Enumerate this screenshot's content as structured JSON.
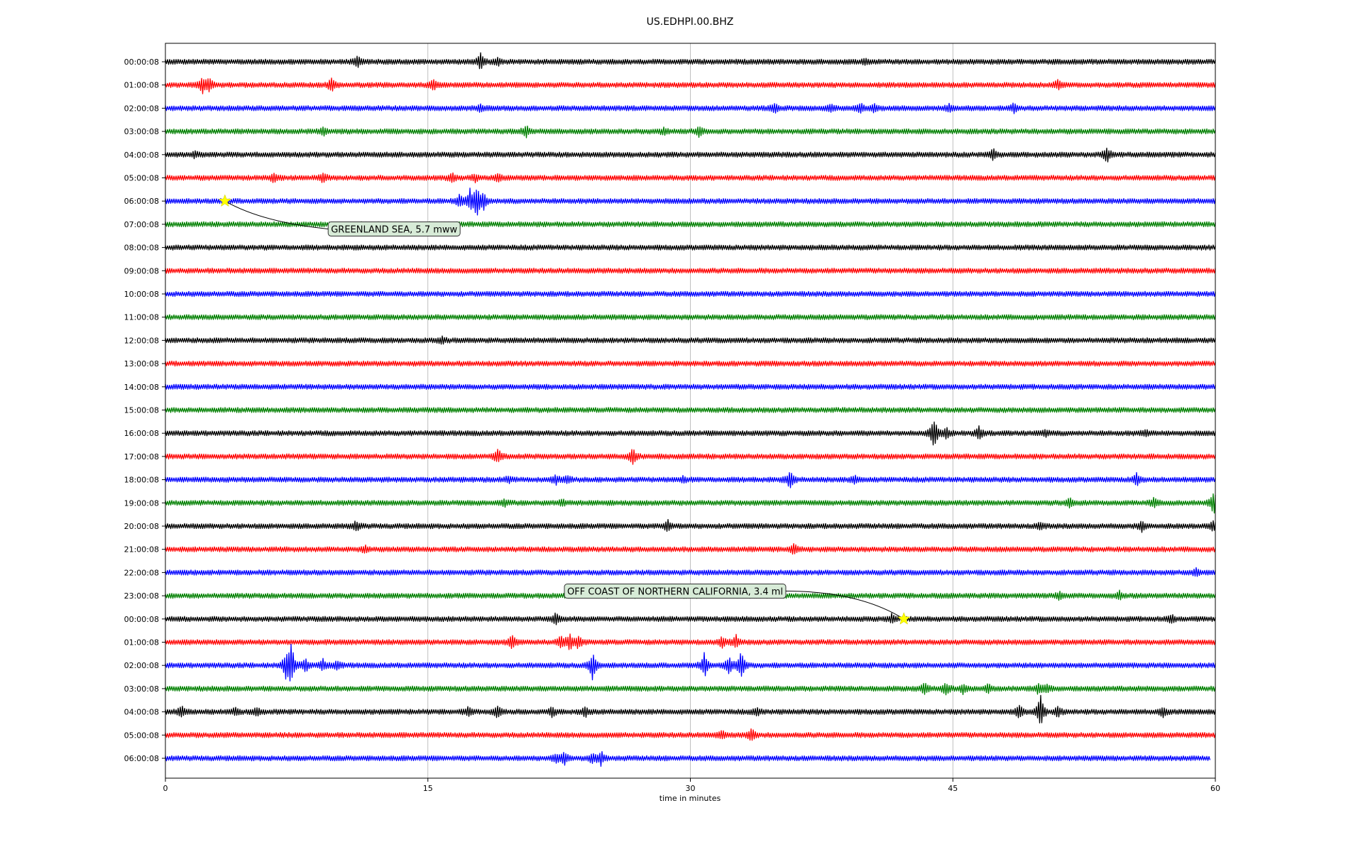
{
  "chart_data": {
    "type": "line",
    "title": "US.EDHPI.00.BHZ",
    "xlabel": "time in minutes",
    "ylabel": "",
    "xlim": [
      0,
      60
    ],
    "xticks": [
      "0",
      "15",
      "30",
      "45",
      "60"
    ],
    "xtick_values": [
      0,
      15,
      30,
      45,
      60
    ],
    "grid": "vertical",
    "colors": [
      "#000000",
      "#ff0000",
      "#0000ff",
      "#008000"
    ],
    "rows": [
      {
        "label": "00:00:08",
        "color": "#000000",
        "end": 60,
        "bursts": [
          [
            11,
            8
          ],
          [
            18,
            11
          ],
          [
            19,
            5
          ],
          [
            40,
            4
          ]
        ]
      },
      {
        "label": "01:00:08",
        "color": "#ff0000",
        "end": 60,
        "bursts": [
          [
            2.1,
            12
          ],
          [
            2.5,
            9
          ],
          [
            9.5,
            11
          ],
          [
            15.3,
            8
          ],
          [
            51,
            6
          ]
        ]
      },
      {
        "label": "02:00:08",
        "color": "#0000ff",
        "end": 60,
        "bursts": [
          [
            18,
            4
          ],
          [
            34.8,
            6
          ],
          [
            38,
            5
          ],
          [
            39.7,
            8
          ],
          [
            40.5,
            6
          ],
          [
            44.8,
            5
          ],
          [
            48.5,
            6
          ]
        ]
      },
      {
        "label": "03:00:08",
        "color": "#008000",
        "end": 60,
        "bursts": [
          [
            9,
            5
          ],
          [
            20.6,
            8
          ],
          [
            28.5,
            4
          ],
          [
            30.5,
            7
          ]
        ]
      },
      {
        "label": "04:00:08",
        "color": "#000000",
        "end": 60,
        "bursts": [
          [
            1.7,
            4
          ],
          [
            47.3,
            8
          ],
          [
            53.8,
            11
          ]
        ]
      },
      {
        "label": "05:00:08",
        "color": "#ff0000",
        "end": 60,
        "bursts": [
          [
            6.2,
            6
          ],
          [
            9,
            7
          ],
          [
            16.4,
            6
          ],
          [
            17.7,
            5
          ],
          [
            19,
            5
          ]
        ]
      },
      {
        "label": "06:00:08",
        "color": "#0000ff",
        "end": 60,
        "bursts": [
          [
            16.8,
            9
          ],
          [
            17.4,
            14
          ],
          [
            17.8,
            22
          ],
          [
            18.2,
            11
          ]
        ]
      },
      {
        "label": "07:00:08",
        "color": "#008000",
        "end": 60,
        "bursts": []
      },
      {
        "label": "08:00:08",
        "color": "#000000",
        "end": 60,
        "bursts": []
      },
      {
        "label": "09:00:08",
        "color": "#ff0000",
        "end": 60,
        "bursts": []
      },
      {
        "label": "10:00:08",
        "color": "#0000ff",
        "end": 60,
        "bursts": []
      },
      {
        "label": "11:00:08",
        "color": "#008000",
        "end": 60,
        "bursts": []
      },
      {
        "label": "12:00:08",
        "color": "#000000",
        "end": 60,
        "bursts": [
          [
            15.8,
            5
          ]
        ]
      },
      {
        "label": "13:00:08",
        "color": "#ff0000",
        "end": 60,
        "bursts": []
      },
      {
        "label": "14:00:08",
        "color": "#0000ff",
        "end": 60,
        "bursts": []
      },
      {
        "label": "15:00:08",
        "color": "#008000",
        "end": 60,
        "bursts": []
      },
      {
        "label": "16:00:08",
        "color": "#000000",
        "end": 60,
        "bursts": [
          [
            43.9,
            26
          ],
          [
            44.6,
            9
          ],
          [
            46.5,
            9
          ],
          [
            50.3,
            5
          ],
          [
            56,
            4
          ]
        ]
      },
      {
        "label": "17:00:08",
        "color": "#ff0000",
        "end": 60,
        "bursts": [
          [
            19,
            10
          ],
          [
            26.7,
            12
          ]
        ]
      },
      {
        "label": "18:00:08",
        "color": "#0000ff",
        "end": 60,
        "bursts": [
          [
            19.6,
            5
          ],
          [
            22.3,
            6
          ],
          [
            23,
            5
          ],
          [
            29.6,
            4
          ],
          [
            35.7,
            14
          ],
          [
            39.4,
            6
          ],
          [
            55.5,
            8
          ]
        ]
      },
      {
        "label": "19:00:08",
        "color": "#008000",
        "end": 60,
        "bursts": [
          [
            19.4,
            4
          ],
          [
            22.7,
            4
          ],
          [
            51.7,
            6
          ],
          [
            56.5,
            7
          ],
          [
            59.9,
            16
          ]
        ]
      },
      {
        "label": "20:00:08",
        "color": "#000000",
        "end": 60,
        "bursts": [
          [
            10.9,
            6
          ],
          [
            28.7,
            8
          ],
          [
            50,
            5
          ],
          [
            55.8,
            6
          ],
          [
            59.9,
            8
          ]
        ]
      },
      {
        "label": "21:00:08",
        "color": "#ff0000",
        "end": 60,
        "bursts": [
          [
            11.4,
            4
          ],
          [
            35.9,
            7
          ]
        ]
      },
      {
        "label": "22:00:08",
        "color": "#0000ff",
        "end": 60,
        "bursts": [
          [
            58.9,
            5
          ]
        ]
      },
      {
        "label": "23:00:08",
        "color": "#008000",
        "end": 60,
        "bursts": [
          [
            51.1,
            5
          ],
          [
            54.5,
            6
          ]
        ]
      },
      {
        "label": "00:00:08",
        "color": "#000000",
        "end": 60,
        "bursts": [
          [
            22.3,
            8
          ],
          [
            41.5,
            5
          ],
          [
            57.5,
            5
          ]
        ]
      },
      {
        "label": "01:00:08",
        "color": "#ff0000",
        "end": 60,
        "bursts": [
          [
            19.8,
            9
          ],
          [
            22.6,
            10
          ],
          [
            23.1,
            11
          ],
          [
            23.6,
            9
          ],
          [
            31.8,
            8
          ],
          [
            32.6,
            9
          ]
        ]
      },
      {
        "label": "02:00:08",
        "color": "#0000ff",
        "end": 60,
        "bursts": [
          [
            6.9,
            20
          ],
          [
            7.2,
            28
          ],
          [
            8,
            10
          ],
          [
            9,
            8
          ],
          [
            9.8,
            6
          ],
          [
            24.4,
            20
          ],
          [
            30.8,
            18
          ],
          [
            32.2,
            14
          ],
          [
            32.9,
            25
          ]
        ]
      },
      {
        "label": "03:00:08",
        "color": "#008000",
        "end": 60,
        "bursts": [
          [
            43.4,
            8
          ],
          [
            44.6,
            9
          ],
          [
            45.6,
            7
          ],
          [
            47,
            6
          ],
          [
            49.9,
            7
          ],
          [
            50.4,
            5
          ]
        ]
      },
      {
        "label": "04:00:08",
        "color": "#000000",
        "end": 60,
        "bursts": [
          [
            0.9,
            8
          ],
          [
            4,
            5
          ],
          [
            5.2,
            5
          ],
          [
            17.3,
            6
          ],
          [
            19,
            10
          ],
          [
            22.1,
            6
          ],
          [
            24,
            6
          ],
          [
            33.8,
            5
          ],
          [
            48.8,
            9
          ],
          [
            50,
            25
          ],
          [
            51,
            8
          ],
          [
            57,
            6
          ]
        ]
      },
      {
        "label": "05:00:08",
        "color": "#ff0000",
        "end": 60,
        "bursts": [
          [
            31.8,
            5
          ],
          [
            33.5,
            9
          ]
        ]
      },
      {
        "label": "06:00:08",
        "color": "#0000ff",
        "end": 59.7,
        "bursts": [
          [
            22.3,
            6
          ],
          [
            22.8,
            8
          ],
          [
            24.4,
            7
          ],
          [
            24.9,
            9
          ]
        ]
      }
    ],
    "events": [
      {
        "label": "GREENLAND SEA, 5.7 mww",
        "row": 6,
        "x": 3.4,
        "box_row": 7.2,
        "box_x": 9.3
      },
      {
        "label": "OFF COAST OF NORTHERN CALIFORNIA, 3.4 ml",
        "row": 24,
        "x": 42.2,
        "box_row": 22.8,
        "box_x": 22.8
      }
    ],
    "event_marker_color": "#ffff00",
    "annotation_box_color": "#d7ebd7"
  }
}
